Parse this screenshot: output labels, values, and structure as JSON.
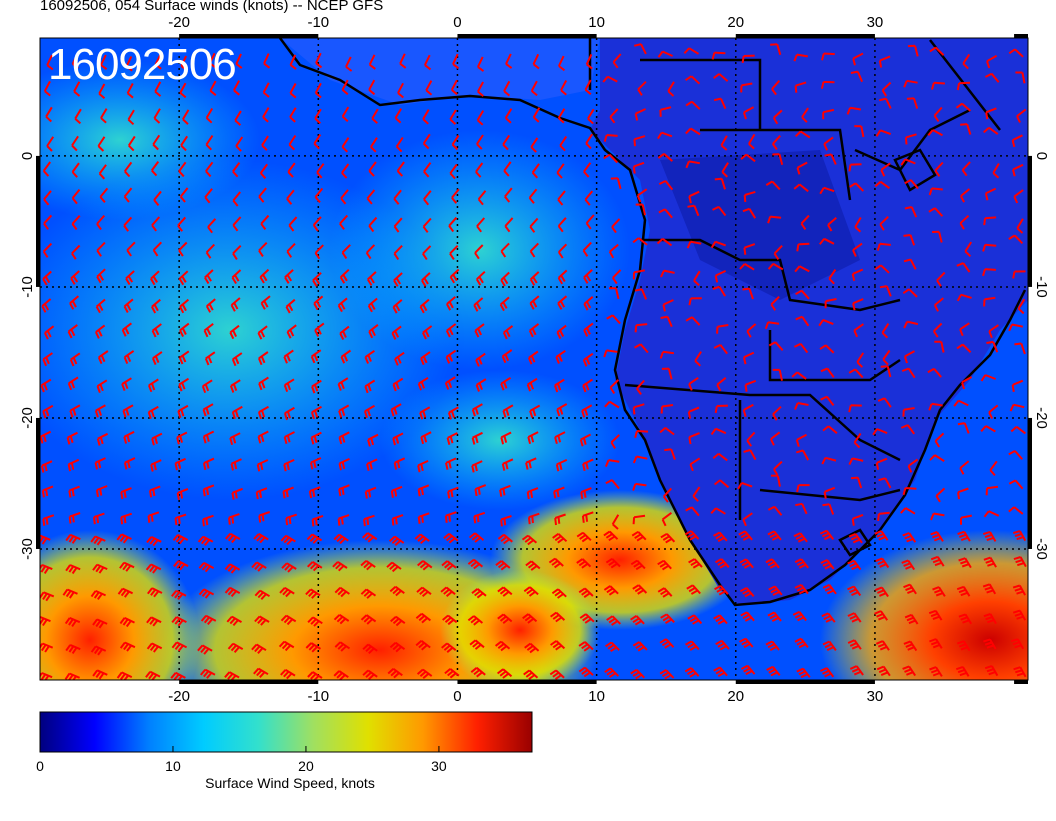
{
  "title": "16092506, 054 Surface winds (knots) -- NCEP GFS",
  "time_stamp": "16092506",
  "map": {
    "lon_range": [
      -30,
      41
    ],
    "lat_range": [
      -40,
      9
    ],
    "lon_ticks": [
      "-20",
      "-10",
      "0",
      "10",
      "20",
      "30"
    ],
    "lat_ticks": [
      "0",
      "-10",
      "-20",
      "-30"
    ],
    "barb_color": "#ff0000",
    "land_outline_color": "#000000"
  },
  "colorbar": {
    "label": "Surface Wind Speed, knots",
    "ticks": [
      "0",
      "10",
      "20",
      "30"
    ],
    "range": [
      0,
      37
    ],
    "colors": [
      "#00007f",
      "#0000ff",
      "#0080ff",
      "#00ccff",
      "#33e0cc",
      "#a0e060",
      "#e0e000",
      "#ff9900",
      "#ff2000",
      "#990000"
    ]
  }
}
